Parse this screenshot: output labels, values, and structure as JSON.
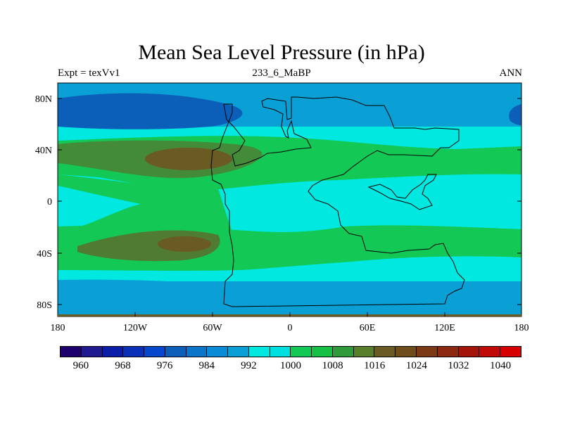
{
  "title": "Mean Sea Level Pressure (in hPa)",
  "subtitle_left": "Expt = texVv1",
  "subtitle_center": "233_6_MaBP",
  "subtitle_right": "ANN",
  "lat_labels": [
    "80N",
    "40N",
    "0",
    "40S",
    "80S"
  ],
  "lon_labels": [
    "180",
    "120W",
    "60W",
    "0",
    "60E",
    "120E",
    "180"
  ],
  "colors": {
    "deep_low": "#0b5fb9",
    "low": "#0aa0d6",
    "mid": "#00e8e0",
    "high": "#14c855",
    "higher": "#2e9a3a",
    "highest": "#6a5a23",
    "coast": "#000000"
  },
  "colorbar": {
    "colors": [
      "#1d006c",
      "#201a8f",
      "#0a1ea8",
      "#0930b7",
      "#0447cc",
      "#0b5fb9",
      "#0a75c9",
      "#0a8bd5",
      "#0aa0d6",
      "#00e8e0",
      "#00e0e0",
      "#14c855",
      "#15c044",
      "#2e9a3a",
      "#5a7f2a",
      "#6a5a23",
      "#6e4d1b",
      "#7b3a15",
      "#8c2710",
      "#a41509",
      "#c00a05",
      "#d60000"
    ],
    "labels": [
      "960",
      "968",
      "976",
      "984",
      "992",
      "1000",
      "1008",
      "1016",
      "1024",
      "1032",
      "1040"
    ]
  }
}
